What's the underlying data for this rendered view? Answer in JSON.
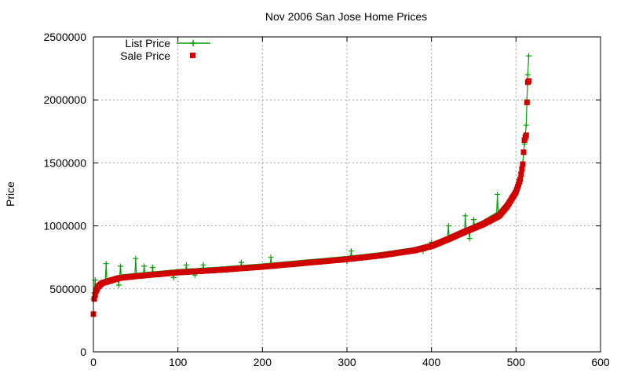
{
  "chart_data": {
    "type": "scatter",
    "title": "Nov 2006 San Jose Home Prices",
    "xlabel": "",
    "ylabel": "Price",
    "xlim": [
      0,
      600
    ],
    "ylim": [
      0,
      2500000
    ],
    "xticks": [
      0,
      100,
      200,
      300,
      400,
      500,
      600
    ],
    "yticks": [
      0,
      500000,
      1000000,
      1500000,
      2000000,
      2500000
    ],
    "xtick_labels": [
      "0",
      "100",
      "200",
      "300",
      "400",
      "500",
      "600"
    ],
    "ytick_labels": [
      "0",
      "500000",
      "1000000",
      "1500000",
      "2000000",
      "2500000"
    ],
    "grid": true,
    "legend_position": "top-left",
    "series": [
      {
        "name": "List Price",
        "color": "#00a000",
        "style": "linespoints",
        "marker": "plus",
        "n": 516,
        "curve": [
          [
            0,
            420000
          ],
          [
            1,
            470000
          ],
          [
            3,
            500000
          ],
          [
            6,
            530000
          ],
          [
            10,
            550000
          ],
          [
            20,
            570000
          ],
          [
            30,
            590000
          ],
          [
            50,
            605000
          ],
          [
            75,
            620000
          ],
          [
            100,
            635000
          ],
          [
            150,
            655000
          ],
          [
            200,
            680000
          ],
          [
            250,
            710000
          ],
          [
            300,
            740000
          ],
          [
            340,
            770000
          ],
          [
            380,
            810000
          ],
          [
            400,
            845000
          ],
          [
            420,
            900000
          ],
          [
            440,
            960000
          ],
          [
            460,
            1020000
          ],
          [
            480,
            1100000
          ],
          [
            490,
            1180000
          ],
          [
            500,
            1280000
          ],
          [
            505,
            1380000
          ],
          [
            508,
            1500000
          ],
          [
            510,
            1650000
          ],
          [
            512,
            1800000
          ],
          [
            513,
            2000000
          ],
          [
            514,
            2200000
          ],
          [
            515,
            2350000
          ]
        ],
        "outliers": [
          [
            2,
            570000
          ],
          [
            15,
            700000
          ],
          [
            32,
            680000
          ],
          [
            50,
            740000
          ],
          [
            60,
            680000
          ],
          [
            70,
            670000
          ],
          [
            110,
            690000
          ],
          [
            130,
            690000
          ],
          [
            175,
            710000
          ],
          [
            210,
            750000
          ],
          [
            300,
            790000
          ],
          [
            305,
            800000
          ],
          [
            400,
            870000
          ],
          [
            420,
            1000000
          ],
          [
            440,
            1080000
          ],
          [
            450,
            1050000
          ],
          [
            478,
            1250000
          ],
          [
            30,
            530000
          ],
          [
            95,
            590000
          ],
          [
            120,
            610000
          ],
          [
            300,
            720000
          ],
          [
            320,
            750000
          ],
          [
            390,
            800000
          ],
          [
            445,
            900000
          ]
        ]
      },
      {
        "name": "Sale Price",
        "color": "#d00000",
        "style": "points",
        "marker": "square",
        "n": 516,
        "curve": [
          [
            0,
            300000
          ],
          [
            1,
            420000
          ],
          [
            3,
            480000
          ],
          [
            6,
            520000
          ],
          [
            10,
            545000
          ],
          [
            20,
            565000
          ],
          [
            30,
            585000
          ],
          [
            50,
            600000
          ],
          [
            75,
            615000
          ],
          [
            100,
            630000
          ],
          [
            150,
            650000
          ],
          [
            200,
            675000
          ],
          [
            250,
            705000
          ],
          [
            300,
            735000
          ],
          [
            340,
            765000
          ],
          [
            380,
            805000
          ],
          [
            400,
            840000
          ],
          [
            420,
            895000
          ],
          [
            440,
            955000
          ],
          [
            460,
            1010000
          ],
          [
            480,
            1080000
          ],
          [
            490,
            1160000
          ],
          [
            500,
            1270000
          ],
          [
            505,
            1370000
          ],
          [
            508,
            1490000
          ],
          [
            510,
            1680000
          ],
          [
            512,
            1720000
          ],
          [
            513,
            1980000
          ],
          [
            514,
            2140000
          ],
          [
            515,
            2150000
          ]
        ],
        "outliers": []
      }
    ]
  }
}
